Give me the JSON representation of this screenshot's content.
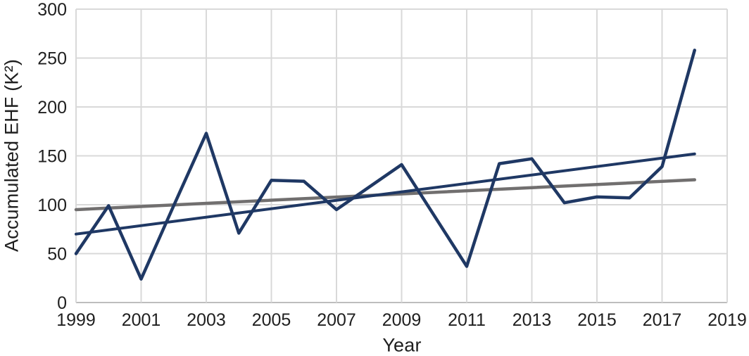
{
  "figure": {
    "ylabel": "Accumulated EHF (K²)",
    "xlabel": "Year"
  },
  "colors": {
    "navy": "#1f3864",
    "gray": "#716f6f",
    "gridline": "#d9d9d9",
    "axis_line": "#bdbdbd",
    "text": "#1f1f1f"
  },
  "chart_data": {
    "type": "line",
    "title": "",
    "xlabel": "Year",
    "ylabel": "Accumulated EHF (K²)",
    "xlim": [
      1999,
      2019
    ],
    "ylim": [
      0,
      300
    ],
    "xticks": [
      1999,
      2001,
      2003,
      2005,
      2007,
      2009,
      2011,
      2013,
      2015,
      2017,
      2019
    ],
    "yticks": [
      0,
      50,
      100,
      150,
      200,
      250,
      300
    ],
    "grid": true,
    "legend": "none",
    "series": [
      {
        "id": "annual-accumulated-ehf",
        "color": "#1f3864",
        "stroke_width": 4.5,
        "x": [
          1999,
          2000,
          2001,
          2002,
          2003,
          2004,
          2005,
          2006,
          2007,
          2008,
          2009,
          2010,
          2011,
          2012,
          2013,
          2014,
          2015,
          2016,
          2017,
          2018
        ],
        "values": [
          50,
          99,
          24,
          99,
          173,
          71,
          125,
          124,
          95,
          118,
          141,
          89,
          37,
          142,
          147,
          102,
          108,
          107,
          139,
          258
        ]
      },
      {
        "id": "linear-trend",
        "color": "#1f3864",
        "stroke_width": 4,
        "x": [
          1999,
          2018
        ],
        "values": [
          70,
          152
        ]
      },
      {
        "id": "smoothed-trend",
        "color": "#716f6f",
        "stroke_width": 4.5,
        "x": [
          1999,
          2018
        ],
        "values": [
          95,
          125.5
        ]
      }
    ]
  }
}
